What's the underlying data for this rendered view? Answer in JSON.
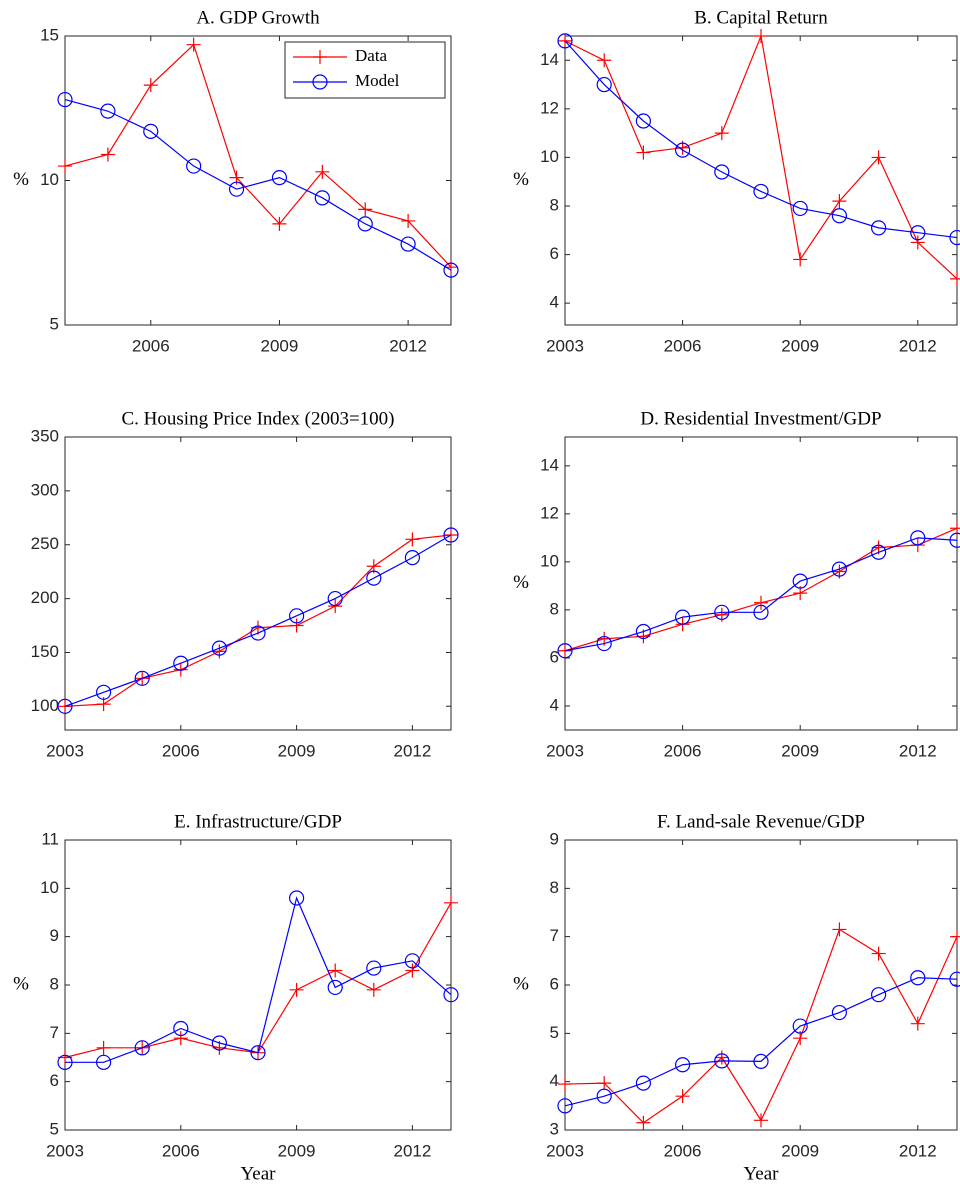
{
  "chart_data": [
    {
      "type": "line",
      "title": "A. GDP Growth",
      "y_label": "%",
      "x": [
        2004,
        2005,
        2006,
        2007,
        2008,
        2009,
        2010,
        2011,
        2012,
        2013
      ],
      "xlim": [
        2004,
        2013
      ],
      "xticks": [
        2006,
        2009,
        2012
      ],
      "ylim": [
        5,
        15
      ],
      "yticks": [
        5,
        10,
        15
      ],
      "legend": "upper right",
      "series": [
        {
          "name": "Data",
          "color": "#ff0000",
          "marker": "+",
          "values": [
            10.5,
            10.9,
            13.3,
            14.7,
            10.1,
            8.5,
            10.3,
            9.0,
            8.6,
            7.0
          ]
        },
        {
          "name": "Model",
          "color": "#0000ff",
          "marker": "o",
          "values": [
            12.8,
            12.4,
            11.7,
            10.5,
            9.7,
            10.1,
            9.4,
            8.5,
            7.8,
            6.9
          ]
        }
      ]
    },
    {
      "type": "line",
      "title": "B. Capital Return",
      "y_label": "%",
      "x": [
        2003,
        2004,
        2005,
        2006,
        2007,
        2008,
        2009,
        2010,
        2011,
        2012,
        2013
      ],
      "xlim": [
        2003,
        2013
      ],
      "xticks": [
        2003,
        2006,
        2009,
        2012
      ],
      "ylim": [
        3.1,
        15
      ],
      "yticks": [
        4,
        6,
        8,
        10,
        12,
        14
      ],
      "series": [
        {
          "color": "#ff0000",
          "marker": "+",
          "values": [
            14.8,
            14.0,
            10.2,
            10.4,
            11.0,
            15.0,
            5.8,
            8.2,
            10.0,
            6.5,
            5.0
          ]
        },
        {
          "color": "#0000ff",
          "marker": "o",
          "values": [
            14.8,
            13.0,
            11.5,
            10.3,
            9.4,
            8.6,
            7.9,
            7.6,
            7.1,
            6.9,
            6.7
          ]
        }
      ]
    },
    {
      "type": "line",
      "title": "C. Housing Price Index (2003=100)",
      "x": [
        2003,
        2004,
        2005,
        2006,
        2007,
        2008,
        2009,
        2010,
        2011,
        2012,
        2013
      ],
      "xlim": [
        2003,
        2013
      ],
      "xticks": [
        2003,
        2006,
        2009,
        2012
      ],
      "ylim": [
        78,
        350
      ],
      "yticks": [
        100,
        150,
        200,
        250,
        300,
        350
      ],
      "series": [
        {
          "color": "#ff0000",
          "marker": "+",
          "values": [
            100,
            102,
            126,
            134,
            151,
            173,
            175,
            193,
            230,
            255,
            259
          ]
        },
        {
          "color": "#0000ff",
          "marker": "o",
          "values": [
            100,
            113,
            126,
            140,
            154,
            168,
            184,
            200,
            219,
            238,
            259
          ]
        }
      ]
    },
    {
      "type": "line",
      "title": "D. Residential Investment/GDP",
      "y_label": "%",
      "x": [
        2003,
        2004,
        2005,
        2006,
        2007,
        2008,
        2009,
        2010,
        2011,
        2012,
        2013
      ],
      "xlim": [
        2003,
        2013
      ],
      "xticks": [
        2003,
        2006,
        2009,
        2012
      ],
      "ylim": [
        3,
        15.2
      ],
      "yticks": [
        4,
        6,
        8,
        10,
        12,
        14
      ],
      "series": [
        {
          "color": "#ff0000",
          "marker": "+",
          "values": [
            6.3,
            6.8,
            6.9,
            7.4,
            7.8,
            8.3,
            8.7,
            9.6,
            10.6,
            10.7,
            11.4
          ]
        },
        {
          "color": "#0000ff",
          "marker": "o",
          "values": [
            6.3,
            6.6,
            7.1,
            7.7,
            7.9,
            7.9,
            9.2,
            9.7,
            10.4,
            11.0,
            10.9
          ]
        }
      ]
    },
    {
      "type": "line",
      "title": "E. Infrastructure/GDP",
      "y_label": "%",
      "x_label": "Year",
      "x": [
        2003,
        2004,
        2005,
        2006,
        2007,
        2008,
        2009,
        2010,
        2011,
        2012,
        2013
      ],
      "xlim": [
        2003,
        2013
      ],
      "xticks": [
        2003,
        2006,
        2009,
        2012
      ],
      "ylim": [
        5,
        11
      ],
      "yticks": [
        5,
        6,
        7,
        8,
        9,
        10,
        11
      ],
      "series": [
        {
          "color": "#ff0000",
          "marker": "+",
          "values": [
            6.5,
            6.7,
            6.7,
            6.9,
            6.7,
            6.6,
            7.9,
            8.3,
            7.9,
            8.3,
            9.7
          ]
        },
        {
          "color": "#0000ff",
          "marker": "o",
          "values": [
            6.4,
            6.4,
            6.7,
            7.1,
            6.8,
            6.6,
            9.8,
            7.95,
            8.35,
            8.5,
            7.8
          ]
        }
      ]
    },
    {
      "type": "line",
      "title": "F. Land-sale Revenue/GDP",
      "y_label": "%",
      "x_label": "Year",
      "x": [
        2003,
        2004,
        2005,
        2006,
        2007,
        2008,
        2009,
        2010,
        2011,
        2012,
        2013
      ],
      "xlim": [
        2003,
        2013
      ],
      "xticks": [
        2003,
        2006,
        2009,
        2012
      ],
      "ylim": [
        3,
        9
      ],
      "yticks": [
        3,
        4,
        5,
        6,
        7,
        8,
        9
      ],
      "series": [
        {
          "color": "#ff0000",
          "marker": "+",
          "values": [
            3.95,
            3.97,
            3.15,
            3.7,
            4.5,
            3.2,
            4.9,
            7.15,
            6.65,
            5.2,
            7.0
          ]
        },
        {
          "color": "#0000ff",
          "marker": "o",
          "values": [
            3.5,
            3.7,
            3.97,
            4.35,
            4.43,
            4.42,
            5.15,
            5.43,
            5.8,
            6.15,
            6.12
          ]
        }
      ]
    }
  ]
}
